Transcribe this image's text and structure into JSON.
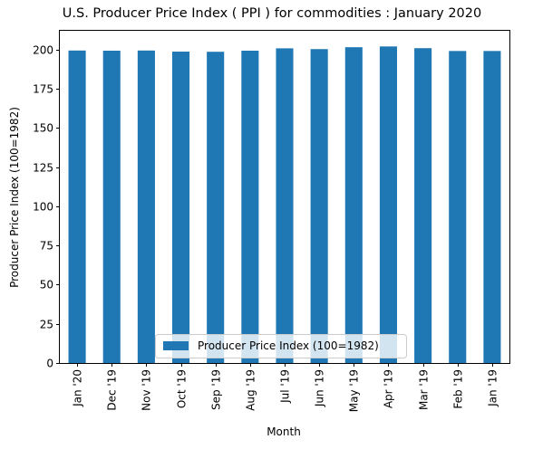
{
  "chart_data": {
    "type": "bar",
    "title": "U.S. Producer Price Index ( PPI ) for commodities : January 2020",
    "xlabel": "Month",
    "ylabel": "Producer Price Index (100=1982)",
    "categories": [
      "Jan '20",
      "Dec '19",
      "Nov '19",
      "Oct '19",
      "Sep '19",
      "Aug '19",
      "Jul '19",
      "Jun '19",
      "May '19",
      "Apr '19",
      "Mar '19",
      "Feb '19",
      "Jan '19"
    ],
    "series": [
      {
        "name": "Producer Price Index (100=1982)",
        "color": "#1f77b4",
        "values": [
          199.4,
          199.3,
          199.4,
          198.7,
          198.6,
          199.3,
          200.8,
          200.3,
          201.5,
          202.0,
          200.9,
          199.1,
          199.1
        ]
      }
    ],
    "ylim": [
      0,
      212
    ],
    "yticks": [
      0,
      25,
      50,
      75,
      100,
      125,
      150,
      175,
      200
    ],
    "legend_position": "lower center",
    "grid": false
  }
}
